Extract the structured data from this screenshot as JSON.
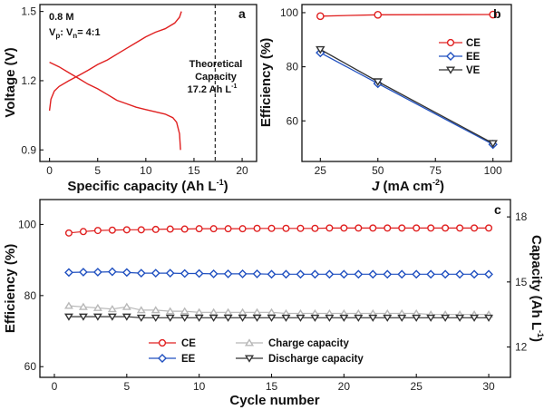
{
  "chart_data": [
    {
      "panel": "a",
      "type": "line",
      "xlabel": "Specific capacity (Ah L",
      "xlabel_sup": "-1",
      "xlabel_close": ")",
      "ylabel": "Voltage (V)",
      "xlim": [
        -1,
        21.5
      ],
      "ylim": [
        0.85,
        1.53
      ],
      "xticks": [
        "0",
        "5",
        "10",
        "15",
        "20"
      ],
      "yticks": [
        "0.9",
        "1.2",
        "1.5"
      ],
      "annotation_concentration": "0.8 M",
      "annotation_ratio_prefix": "V",
      "annotation_ratio_sub1": "p",
      "annotation_ratio_mid": ": V",
      "annotation_ratio_sub2": "n",
      "annotation_ratio_value": "= 4:1",
      "dashed_line_x": 17.2,
      "theoretical_line1": "Theoretical",
      "theoretical_line2": "Capacity",
      "theoretical_line3": "17.2 Ah L",
      "theoretical_sup": "-1",
      "color": "#e02020",
      "series": [
        {
          "x": [
            0,
            0.15,
            0.5,
            1,
            2,
            3,
            4,
            5,
            6,
            7,
            8,
            9,
            10,
            11,
            12,
            13,
            13.5,
            13.7
          ],
          "y": [
            1.07,
            1.12,
            1.155,
            1.175,
            1.2,
            1.222,
            1.245,
            1.27,
            1.29,
            1.315,
            1.34,
            1.365,
            1.39,
            1.41,
            1.425,
            1.45,
            1.475,
            1.5
          ]
        },
        {
          "x": [
            0,
            1,
            2,
            3,
            4,
            5,
            6,
            7,
            8,
            9,
            10,
            11,
            12,
            12.8,
            13.2,
            13.5,
            13.6
          ],
          "y": [
            1.28,
            1.26,
            1.235,
            1.21,
            1.185,
            1.165,
            1.14,
            1.115,
            1.1,
            1.085,
            1.075,
            1.065,
            1.055,
            1.04,
            1.02,
            0.97,
            0.9
          ]
        }
      ]
    },
    {
      "panel": "b",
      "type": "line",
      "xlabel_j": "J",
      "xlabel": " (mA cm",
      "xlabel_sup": "-2",
      "xlabel_close": ")",
      "ylabel": "Efficiency (%)",
      "xlim": [
        17,
        108
      ],
      "ylim": [
        45,
        103
      ],
      "xticks": [
        "25",
        "50",
        "75",
        "100"
      ],
      "yticks": [
        "60",
        "80",
        "100"
      ],
      "x": [
        25,
        50,
        100
      ],
      "series": [
        {
          "name": "CE",
          "values": [
            98.7,
            99.2,
            99.3
          ],
          "color": "#e02020",
          "marker": "circle"
        },
        {
          "name": "EE",
          "values": [
            85.2,
            73.8,
            51.3
          ],
          "color": "#2050c0",
          "marker": "diamond"
        },
        {
          "name": "VE",
          "values": [
            86.4,
            74.5,
            51.7
          ],
          "color": "#333333",
          "marker": "triangle-down"
        }
      ]
    },
    {
      "panel": "c",
      "type": "line",
      "xlabel": "Cycle number",
      "ylabel": "Efficiency (%)",
      "ylabel_right": "Capacity (Ah L",
      "ylabel_right_sup": "-1",
      "ylabel_right_close": ")",
      "xlim": [
        -1,
        31.5
      ],
      "ylim": [
        57,
        107
      ],
      "ylim_right": [
        10.6,
        18.8
      ],
      "xticks": [
        "0",
        "5",
        "10",
        "15",
        "20",
        "25",
        "30"
      ],
      "yticks": [
        "60",
        "80",
        "100"
      ],
      "yticks_right": [
        "12",
        "15",
        "18"
      ],
      "cycles": [
        1,
        2,
        3,
        4,
        5,
        6,
        7,
        8,
        9,
        10,
        11,
        12,
        13,
        14,
        15,
        16,
        17,
        18,
        19,
        20,
        21,
        22,
        23,
        24,
        25,
        26,
        27,
        28,
        29,
        30
      ],
      "series": [
        {
          "name": "CE",
          "axis": "left",
          "color": "#e02020",
          "marker": "circle",
          "values": [
            97.6,
            98.0,
            98.3,
            98.4,
            98.5,
            98.5,
            98.6,
            98.7,
            98.7,
            98.8,
            98.8,
            98.8,
            98.8,
            98.9,
            98.9,
            98.9,
            98.9,
            98.9,
            99.0,
            99.0,
            99.0,
            99.0,
            99.0,
            99.0,
            99.0,
            99.0,
            99.0,
            99.0,
            99.0,
            99.0
          ]
        },
        {
          "name": "EE",
          "axis": "left",
          "color": "#2050c0",
          "marker": "diamond",
          "values": [
            86.5,
            86.6,
            86.6,
            86.7,
            86.5,
            86.3,
            86.3,
            86.3,
            86.2,
            86.2,
            86.1,
            86.1,
            86.1,
            86.1,
            86.0,
            86.0,
            86.0,
            86.0,
            86.0,
            86.0,
            86.0,
            86.0,
            86.0,
            86.0,
            86.0,
            86.0,
            86.0,
            86.0,
            86.0,
            86.0
          ]
        },
        {
          "name": "Charge capacity",
          "axis": "right",
          "color": "#b8b8b8",
          "marker": "triangle-up",
          "values": [
            13.9,
            13.85,
            13.8,
            13.75,
            13.85,
            13.7,
            13.7,
            13.65,
            13.65,
            13.6,
            13.6,
            13.6,
            13.6,
            13.6,
            13.6,
            13.55,
            13.55,
            13.55,
            13.55,
            13.55,
            13.55,
            13.55,
            13.55,
            13.55,
            13.55,
            13.5,
            13.5,
            13.5,
            13.5,
            13.5
          ]
        },
        {
          "name": "Discharge capacity",
          "axis": "right",
          "color": "#333333",
          "marker": "triangle-down",
          "values": [
            13.4,
            13.4,
            13.4,
            13.4,
            13.4,
            13.35,
            13.35,
            13.35,
            13.35,
            13.35,
            13.35,
            13.35,
            13.35,
            13.35,
            13.35,
            13.35,
            13.35,
            13.35,
            13.35,
            13.35,
            13.35,
            13.35,
            13.35,
            13.35,
            13.35,
            13.35,
            13.35,
            13.35,
            13.35,
            13.35
          ]
        }
      ]
    }
  ]
}
